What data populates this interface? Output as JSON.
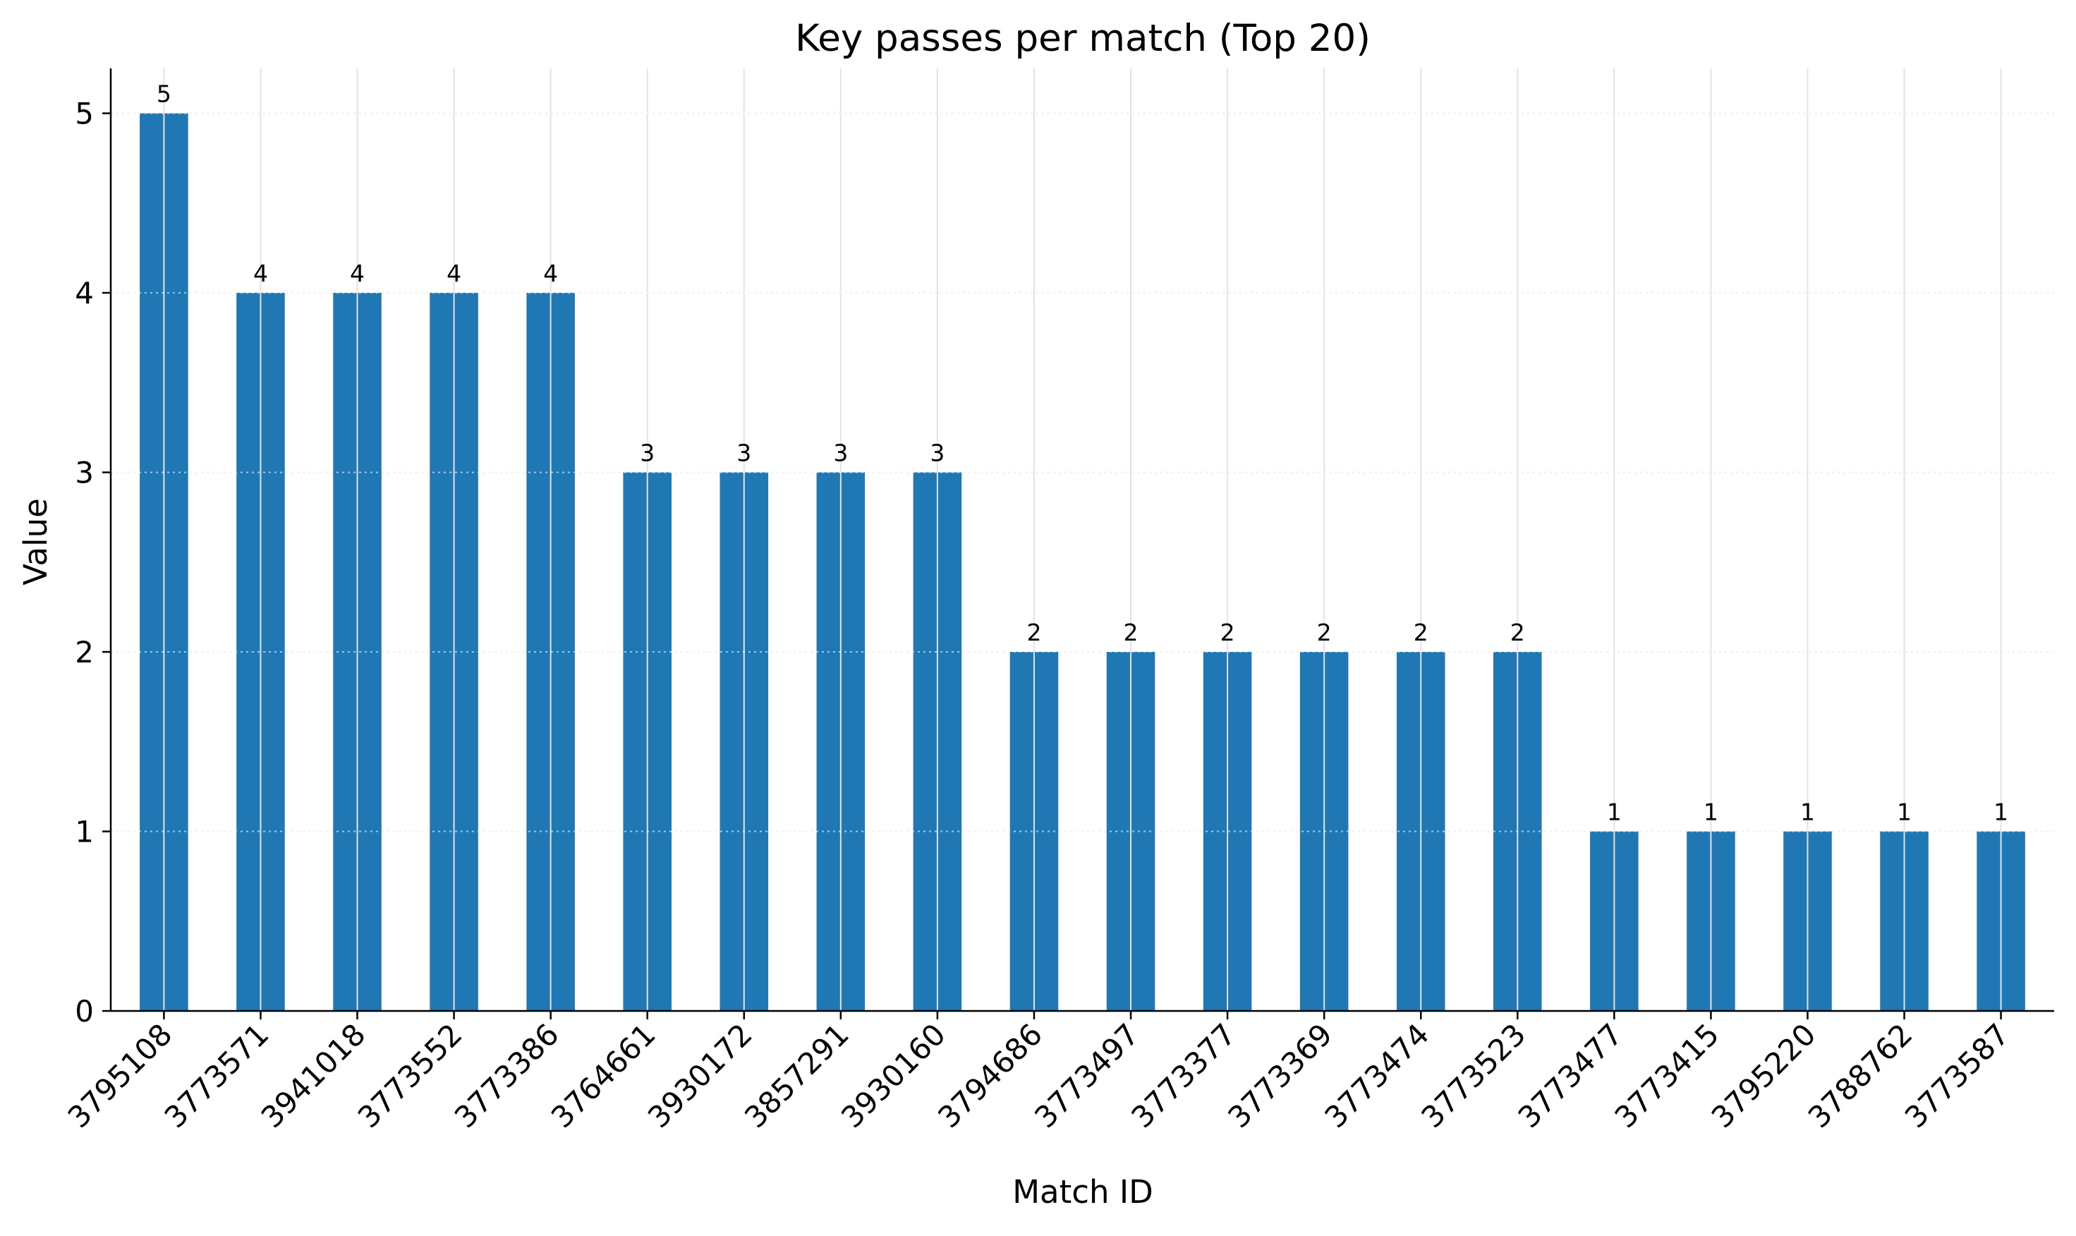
{
  "chart_data": {
    "type": "bar",
    "title": "Key passes per match (Top 20)",
    "xlabel": "Match ID",
    "ylabel": "Value",
    "categories": [
      "3795108",
      "3773571",
      "3941018",
      "3773552",
      "3773386",
      "3764661",
      "3930172",
      "3857291",
      "3930160",
      "3794686",
      "3773497",
      "3773377",
      "3773369",
      "3773474",
      "3773523",
      "3773477",
      "3773415",
      "3795220",
      "3788762",
      "3773587"
    ],
    "values": [
      5,
      4,
      4,
      4,
      4,
      3,
      3,
      3,
      3,
      2,
      2,
      2,
      2,
      2,
      2,
      1,
      1,
      1,
      1,
      1
    ],
    "ylim": [
      0,
      5.25
    ],
    "yticks": [
      0,
      1,
      2,
      3,
      4,
      5
    ],
    "grid": true,
    "data_labels": true,
    "x_tick_rotation": 45,
    "bar_color": "#1f77b4"
  }
}
